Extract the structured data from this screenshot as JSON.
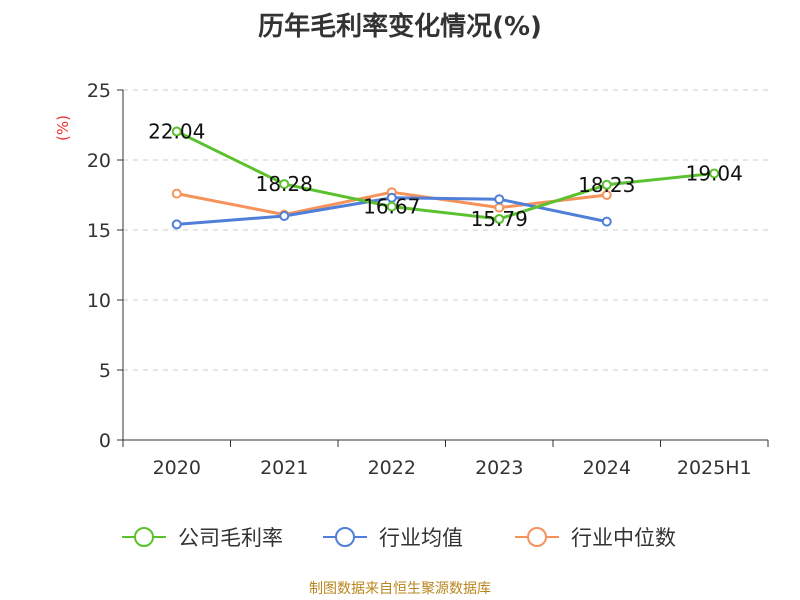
{
  "title": "历年毛利率变化情况(%)",
  "source": "制图数据来自恒生聚源数据库",
  "chart_data": {
    "type": "line",
    "title": "历年毛利率变化情况(%)",
    "ylabel": "(%)",
    "xlabel": "",
    "categories": [
      "2020",
      "2021",
      "2022",
      "2023",
      "2024",
      "2025H1"
    ],
    "ylim": [
      0,
      25
    ],
    "yticks": [
      0,
      5,
      10,
      15,
      20,
      25
    ],
    "grid": "horizontal dashed",
    "legend_position": "bottom",
    "series": [
      {
        "name": "公司毛利率",
        "color": "#5bc12e",
        "values": [
          22.04,
          18.28,
          16.67,
          15.79,
          18.23,
          19.04
        ],
        "labels": [
          "22.04",
          "18.28",
          "16.67",
          "15.79",
          "18.23",
          "19.04"
        ]
      },
      {
        "name": "行业均值",
        "color": "#4f7fd9",
        "values": [
          15.4,
          16.0,
          17.3,
          17.2,
          15.6,
          null
        ],
        "labels": []
      },
      {
        "name": "行业中位数",
        "color": "#f5935a",
        "values": [
          17.6,
          16.1,
          17.7,
          16.6,
          17.5,
          null
        ],
        "labels": []
      }
    ]
  }
}
